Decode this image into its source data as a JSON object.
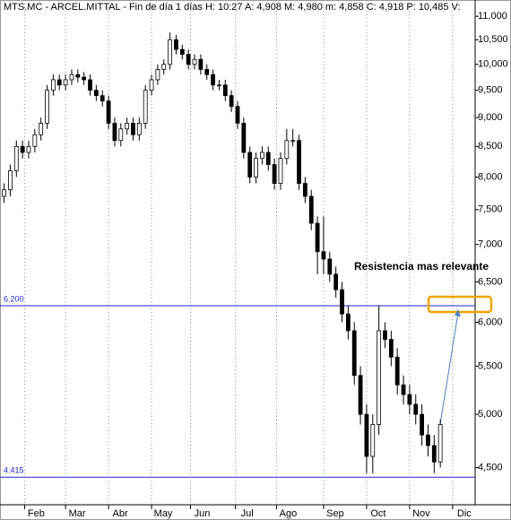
{
  "chart_data": {
    "type": "candlestick",
    "title": "MTS.MC - ARCEL.MITTAL - Fin de día 1 días H: 10:27 A: 4,908 M: 4,980 m: 4,858 C: 4,918 P: 10,485 V:",
    "log_y": true,
    "grid": true,
    "color": "#000000",
    "x": [
      0,
      3,
      6,
      9,
      12,
      15,
      18,
      21,
      24,
      27,
      30,
      33,
      36,
      39,
      42,
      45,
      48,
      51,
      54,
      57,
      60,
      63,
      66,
      69,
      72,
      75,
      78,
      81,
      84,
      87,
      90,
      93,
      96,
      99,
      102,
      105,
      108,
      111,
      114,
      117,
      120,
      123,
      126,
      129,
      132,
      135,
      138,
      141,
      144,
      147,
      150,
      153,
      156,
      159,
      162,
      165,
      168,
      171,
      174,
      177,
      180,
      183,
      186,
      189,
      192,
      195,
      198,
      201,
      204,
      207,
      210,
      213
    ],
    "open": [
      7700,
      7800,
      8100,
      8500,
      8400,
      8500,
      8700,
      8900,
      9500,
      9700,
      9600,
      9700,
      9800,
      9750,
      9700,
      9500,
      9400,
      9300,
      8900,
      8600,
      8800,
      8900,
      8700,
      8900,
      9500,
      9700,
      9900,
      10000,
      10500,
      10300,
      10200,
      10000,
      10100,
      9900,
      9800,
      9600,
      9600,
      9400,
      9200,
      8900,
      8400,
      8000,
      8300,
      8400,
      8200,
      7900,
      8300,
      8600,
      8600,
      7900,
      7700,
      7300,
      6900,
      6800,
      6600,
      6400,
      6100,
      5900,
      5400,
      5000,
      4600,
      4900,
      5900,
      5800,
      5600,
      5300,
      5200,
      5100,
      5000,
      4800,
      4700,
      4550
    ],
    "high": [
      7900,
      8200,
      8600,
      8600,
      8600,
      8800,
      9000,
      9600,
      9800,
      9800,
      9800,
      9900,
      9900,
      9850,
      9800,
      9600,
      9500,
      9400,
      9000,
      8900,
      9000,
      9000,
      9000,
      9600,
      9800,
      10000,
      10100,
      10650,
      10600,
      10400,
      10300,
      10200,
      10200,
      10000,
      9900,
      9700,
      9700,
      9500,
      9300,
      9000,
      8500,
      8400,
      8500,
      8500,
      8300,
      8400,
      8800,
      8800,
      8700,
      8000,
      7800,
      7400,
      7400,
      6900,
      6700,
      6500,
      6200,
      6000,
      5500,
      5100,
      5000,
      6200,
      6000,
      5900,
      5700,
      5400,
      5300,
      5200,
      5100,
      4900,
      4800,
      4950
    ],
    "low": [
      7600,
      7700,
      8000,
      8300,
      8300,
      8400,
      8600,
      8800,
      9400,
      9500,
      9500,
      9600,
      9650,
      9600,
      9400,
      9300,
      9200,
      8800,
      8500,
      8500,
      8700,
      8600,
      8600,
      8800,
      9400,
      9600,
      9800,
      9900,
      10200,
      10100,
      9900,
      9900,
      9800,
      9700,
      9500,
      9500,
      9300,
      9100,
      8800,
      8300,
      7900,
      7900,
      8200,
      8100,
      7800,
      7800,
      8200,
      8500,
      7800,
      7600,
      7200,
      6600,
      6600,
      6500,
      6300,
      6000,
      5800,
      5300,
      4900,
      4450,
      4450,
      4800,
      5700,
      5500,
      5200,
      5100,
      5000,
      4900,
      4700,
      4600,
      4450,
      4500
    ],
    "close": [
      7800,
      8100,
      8500,
      8400,
      8500,
      8700,
      8900,
      9500,
      9700,
      9600,
      9700,
      9800,
      9750,
      9700,
      9500,
      9400,
      9300,
      8900,
      8600,
      8800,
      8900,
      8700,
      8900,
      9500,
      9700,
      9900,
      10000,
      10500,
      10300,
      10200,
      10000,
      10100,
      9900,
      9800,
      9600,
      9600,
      9400,
      9200,
      8900,
      8400,
      8000,
      8300,
      8400,
      8200,
      7900,
      8300,
      8600,
      8600,
      7900,
      7700,
      7300,
      6900,
      6800,
      6600,
      6400,
      6100,
      5900,
      5400,
      5000,
      4600,
      4900,
      5900,
      5800,
      5600,
      5300,
      5200,
      5100,
      5000,
      4800,
      4700,
      4550,
      4900
    ],
    "xlim": [
      -2,
      230
    ],
    "xticks": [
      {
        "value": 10,
        "label": "Feb"
      },
      {
        "value": 30,
        "label": "Mar"
      },
      {
        "value": 51,
        "label": "Abr"
      },
      {
        "value": 72,
        "label": "May"
      },
      {
        "value": 91,
        "label": "Jun"
      },
      {
        "value": 113,
        "label": "Jul"
      },
      {
        "value": 133,
        "label": "Ago"
      },
      {
        "value": 156,
        "label": "Sep"
      },
      {
        "value": 177,
        "label": "Oct"
      },
      {
        "value": 198,
        "label": "Nov"
      },
      {
        "value": 219,
        "label": "Dic"
      }
    ],
    "ylim": [
      4180,
      11360
    ],
    "yticks": [
      {
        "value": 4500,
        "label": "4,500"
      },
      {
        "value": 5000,
        "label": "5,000"
      },
      {
        "value": 5500,
        "label": "5,500"
      },
      {
        "value": 6000,
        "label": "6,000"
      },
      {
        "value": 6500,
        "label": "6,500"
      },
      {
        "value": 7000,
        "label": "7,000"
      },
      {
        "value": 7500,
        "label": "7,500"
      },
      {
        "value": 8000,
        "label": "8,000"
      },
      {
        "value": 8500,
        "label": "8,500"
      },
      {
        "value": 9000,
        "label": "9,000"
      },
      {
        "value": 9500,
        "label": "9,500"
      },
      {
        "value": 10000,
        "label": "10,000"
      },
      {
        "value": 10500,
        "label": "10,500"
      },
      {
        "value": 11000,
        "label": "11,000"
      }
    ],
    "reference_lines": [
      {
        "value": 6200,
        "label": "6.200",
        "color": "#2424c8"
      },
      {
        "value": 4415,
        "label": "4.415",
        "color": "#2424c8"
      }
    ],
    "annotation": "Resistencia mas relevante"
  }
}
